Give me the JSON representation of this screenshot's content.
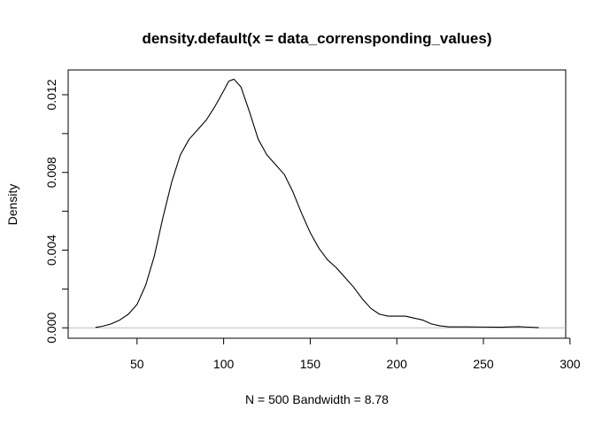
{
  "chart_data": {
    "type": "line",
    "title": "density.default(x = data_corrensponding_values)",
    "xlabel": "N = 500   Bandwidth = 8.78",
    "ylabel": "Density",
    "xlim": [
      0,
      300
    ],
    "ylim": [
      0,
      0.0135
    ],
    "x_ticks": [
      50,
      100,
      150,
      200,
      250,
      300
    ],
    "x_tick_labels": [
      "50",
      "100",
      "150",
      "200",
      "250",
      "300"
    ],
    "y_ticks": [
      0.0,
      0.004,
      0.008,
      0.012
    ],
    "y_tick_labels": [
      "0.000",
      "0.004",
      "0.008",
      "0.012"
    ],
    "baseline": 0,
    "grid": false,
    "colors": {
      "line": "#000000",
      "baseline": "#bebebe"
    },
    "series": [
      {
        "x": [
          26,
          30,
          35,
          40,
          45,
          50,
          55,
          60,
          65,
          70,
          75,
          80,
          85,
          90,
          95,
          100,
          103,
          106,
          110,
          115,
          120,
          125,
          130,
          135,
          140,
          145,
          150,
          155,
          160,
          165,
          170,
          175,
          180,
          185,
          190,
          195,
          200,
          205,
          210,
          215,
          220,
          225,
          230,
          240,
          250,
          260,
          270,
          275,
          282
        ],
        "y": [
          2e-05,
          8e-05,
          0.0002,
          0.0004,
          0.0007,
          0.0012,
          0.0022,
          0.0037,
          0.0057,
          0.0075,
          0.0089,
          0.0097,
          0.0102,
          0.0107,
          0.0114,
          0.0122,
          0.0127,
          0.0128,
          0.0124,
          0.0111,
          0.0097,
          0.0089,
          0.0084,
          0.0079,
          0.007,
          0.0059,
          0.0049,
          0.0041,
          0.0035,
          0.0031,
          0.0026,
          0.0021,
          0.0015,
          0.001,
          0.0007,
          0.0006,
          0.0006,
          0.0006,
          0.0005,
          0.0004,
          0.0002,
          0.0001,
          5e-05,
          5e-05,
          4e-05,
          3e-05,
          6e-05,
          4e-05,
          1e-05
        ]
      }
    ]
  }
}
